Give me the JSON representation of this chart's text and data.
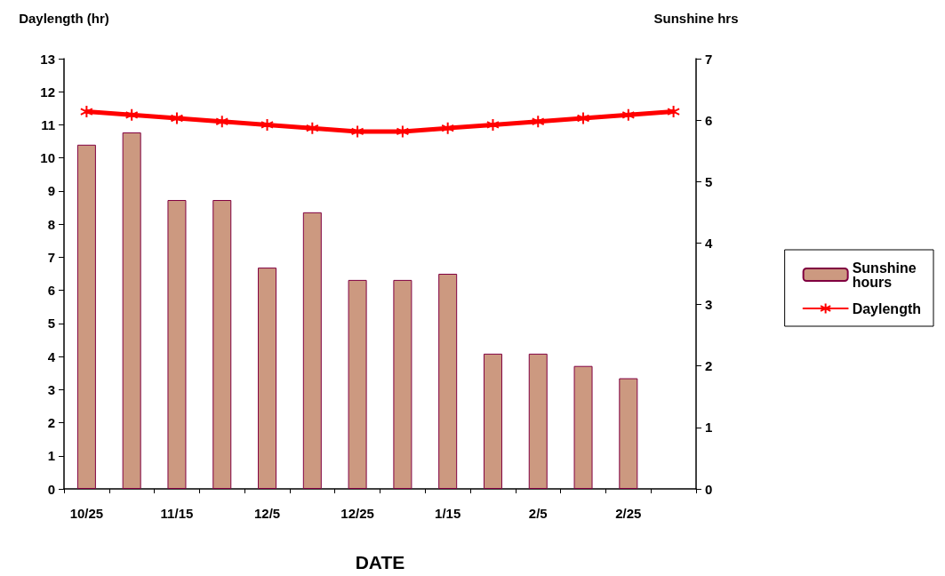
{
  "chart_data": {
    "type": "bar",
    "xlabel": "DATE",
    "ylabel": "Daylength (hr)",
    "y2label": "Sunshine hrs",
    "categories": [
      "10/25",
      null,
      "11/15",
      null,
      "12/5",
      null,
      "12/25",
      null,
      "1/15",
      null,
      "2/5",
      null,
      "2/25",
      null
    ],
    "series": [
      {
        "name": "Sunshine hours",
        "axis": "y2",
        "color": "#cc9980",
        "values": [
          5.6,
          5.8,
          4.7,
          4.7,
          3.6,
          4.5,
          3.4,
          3.4,
          3.5,
          2.2,
          2.2,
          2.0,
          1.8,
          null
        ]
      },
      {
        "name": "Daylength",
        "type": "line",
        "color": "#ff0000",
        "marker": "cross",
        "values": [
          11.4,
          11.3,
          11.2,
          11.1,
          11.0,
          10.9,
          10.8,
          10.8,
          10.9,
          11.0,
          11.1,
          11.2,
          11.3,
          11.4
        ]
      }
    ],
    "ylim": [
      0,
      13
    ],
    "yticks": [
      0,
      1,
      2,
      3,
      4,
      5,
      6,
      7,
      8,
      9,
      10,
      11,
      12,
      13
    ],
    "y2lim": [
      0,
      7
    ],
    "y2ticks": [
      0,
      1,
      2,
      3,
      4,
      5,
      6,
      7
    ],
    "grid": false,
    "legend": "right"
  }
}
